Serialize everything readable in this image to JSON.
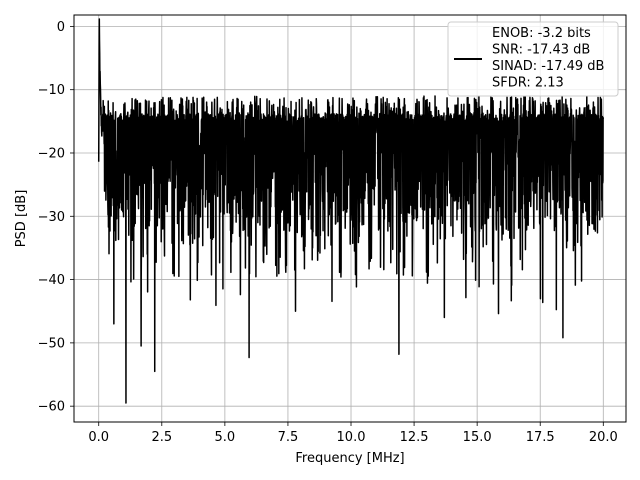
{
  "chart_data": {
    "type": "line",
    "title": "",
    "xlabel": "Frequency [MHz]",
    "ylabel": "PSD [dB]",
    "xlim": [
      -0.98,
      20.9
    ],
    "ylim": [
      -62.5,
      1.8
    ],
    "xticks": [
      0.0,
      2.5,
      5.0,
      7.5,
      10.0,
      12.5,
      15.0,
      17.5,
      20.0
    ],
    "xtick_labels": [
      "0.0",
      "2.5",
      "5.0",
      "7.5",
      "10.0",
      "12.5",
      "15.0",
      "17.5",
      "20.0"
    ],
    "yticks": [
      0,
      -10,
      -20,
      -30,
      -40,
      -50,
      -60
    ],
    "ytick_labels": [
      "0",
      "−10",
      "−20",
      "−30",
      "−40",
      "−50",
      "−60"
    ],
    "grid": true,
    "legend_position": "top-right",
    "legend_lines": [
      "ENOB: -3.2 bits",
      "SNR: -17.43 dB",
      "SINAD: -17.49 dB",
      "SFDR: 2.13"
    ],
    "line_color": "#000000",
    "series": [
      {
        "x": [
          0.0,
          0.02,
          0.05,
          0.08,
          0.12,
          0.2,
          0.3,
          0.4,
          0.6,
          0.8,
          1.08,
          1.6,
          2.2,
          3.0,
          4.0,
          5.0,
          6.0,
          7.0,
          8.0,
          9.0,
          10.0,
          11.0,
          11.9,
          13.0,
          14.0,
          15.0,
          16.0,
          17.0,
          18.4,
          19.0,
          20.0
        ],
        "y": [
          -22,
          0,
          -8,
          -13,
          -16,
          -20,
          -22,
          -24,
          -26,
          -25,
          -24,
          -23,
          -24,
          -23,
          -24,
          -22,
          -24,
          -23,
          -22,
          -24,
          -23,
          -22,
          -24,
          -23,
          -22,
          -24,
          -23,
          -22,
          -24,
          -23,
          -24
        ]
      }
    ],
    "noise_band": {
      "top": -11,
      "bottom": -33,
      "typical_top": -15,
      "typical_bottom": -30
    },
    "notable_dips": [
      {
        "x": 1.08,
        "y": -59.5
      },
      {
        "x": 2.22,
        "y": -54.5
      },
      {
        "x": 1.68,
        "y": -50.5
      },
      {
        "x": 0.6,
        "y": -47.0
      },
      {
        "x": 5.96,
        "y": -52.3
      },
      {
        "x": 11.9,
        "y": -51.8
      },
      {
        "x": 18.4,
        "y": -49.2
      },
      {
        "x": 7.8,
        "y": -45.0
      },
      {
        "x": 13.7,
        "y": -46.0
      }
    ]
  }
}
